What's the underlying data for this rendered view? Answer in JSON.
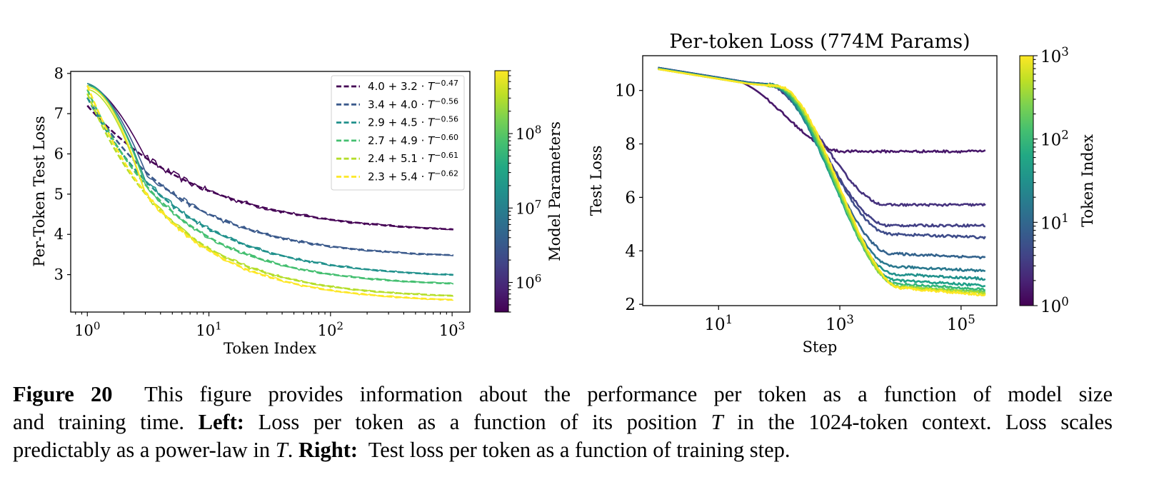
{
  "chart_data": [
    {
      "type": "line",
      "title": "",
      "xlabel": "Token Index",
      "ylabel": "Per-Token Test Loss",
      "xscale": "log",
      "xlim": [
        0.73,
        1400
      ],
      "ylim": [
        2.07,
        8.05
      ],
      "xticks": [
        {
          "value": 1,
          "base": "10",
          "exp": "0"
        },
        {
          "value": 10,
          "base": "10",
          "exp": "1"
        },
        {
          "value": 100,
          "base": "10",
          "exp": "2"
        },
        {
          "value": 1000,
          "base": "10",
          "exp": "3"
        }
      ],
      "yticks": [
        "3",
        "4",
        "5",
        "6",
        "7",
        "8"
      ],
      "legend_position": "top-right",
      "series": [
        {
          "name": "4.0 + 3.2 · T^-0.47",
          "a": 4.0,
          "b": 3.2,
          "c": 0.47,
          "legend_main": "4.0 + 3.2 · ",
          "legend_T": "T",
          "legend_exp": "−0.47",
          "color": "#440154",
          "data_start": 7.75,
          "noise": 0.09
        },
        {
          "name": "3.4 + 4.0 · T^-0.56",
          "a": 3.4,
          "b": 4.0,
          "c": 0.56,
          "legend_main": "3.4 + 4.0 · ",
          "legend_T": "T",
          "legend_exp": "−0.56",
          "color": "#3b5a8c",
          "data_start": 7.75,
          "noise": 0.08
        },
        {
          "name": "2.9 + 4.5 · T^-0.56",
          "a": 2.9,
          "b": 4.5,
          "c": 0.56,
          "legend_main": "2.9 + 4.5 · ",
          "legend_T": "T",
          "legend_exp": "−0.56",
          "color": "#21918c",
          "data_start": 7.75,
          "noise": 0.07
        },
        {
          "name": "2.7 + 4.9 · T^-0.60",
          "a": 2.7,
          "b": 4.9,
          "c": 0.6,
          "legend_main": "2.7 + 4.9 · ",
          "legend_T": "T",
          "legend_exp": "−0.60",
          "color": "#44bf70",
          "data_start": 7.7,
          "noise": 0.06
        },
        {
          "name": "2.4 + 5.1 · T^-0.61",
          "a": 2.4,
          "b": 5.1,
          "c": 0.61,
          "legend_main": "2.4 + 5.1 · ",
          "legend_T": "T",
          "legend_exp": "−0.61",
          "color": "#b5de2b",
          "data_start": 7.6,
          "noise": 0.06
        },
        {
          "name": "2.3 + 5.4 · T^-0.62",
          "a": 2.3,
          "b": 5.4,
          "c": 0.62,
          "legend_main": "2.3 + 5.4 · ",
          "legend_T": "T",
          "legend_exp": "−0.62",
          "color": "#fde725",
          "data_start": 7.65,
          "noise": 0.06
        }
      ],
      "colorbar": {
        "label": "Model Parameters",
        "scale": "log",
        "range": [
          400000,
          700000000
        ],
        "ticks": [
          {
            "value": 1000000,
            "base": "10",
            "exp": "6"
          },
          {
            "value": 10000000,
            "base": "10",
            "exp": "7"
          },
          {
            "value": 100000000,
            "base": "10",
            "exp": "8"
          }
        ],
        "colormap": "viridis"
      }
    },
    {
      "type": "line",
      "title": "Per-token Loss (774M Params)",
      "xlabel": "Step",
      "ylabel": "Test Loss",
      "xscale": "log",
      "xlim": [
        0.56,
        390000
      ],
      "ylim": [
        1.95,
        11.3
      ],
      "xticks": [
        {
          "value": 10,
          "base": "10",
          "exp": "1"
        },
        {
          "value": 1000,
          "base": "10",
          "exp": "3"
        },
        {
          "value": 100000,
          "base": "10",
          "exp": "5"
        }
      ],
      "yticks": [
        "2",
        "4",
        "6",
        "8",
        "10"
      ],
      "x_range": [
        1,
        250000
      ],
      "series": [
        {
          "token_index": 1,
          "color": "#48186a",
          "start": 10.85,
          "final": 7.72
        },
        {
          "token_index": 2,
          "color": "#46327e",
          "start": 10.85,
          "final": 5.72
        },
        {
          "token_index": 3,
          "color": "#424086",
          "start": 10.85,
          "final": 4.95
        },
        {
          "token_index": 4,
          "color": "#3e4c8a",
          "start": 10.85,
          "final": 4.5
        },
        {
          "token_index": 8,
          "color": "#33638d",
          "start": 10.85,
          "final": 3.75
        },
        {
          "token_index": 16,
          "color": "#2a788e",
          "start": 10.82,
          "final": 3.25
        },
        {
          "token_index": 32,
          "color": "#21918c",
          "start": 10.82,
          "final": 2.95
        },
        {
          "token_index": 64,
          "color": "#1fa088",
          "start": 10.82,
          "final": 2.7
        },
        {
          "token_index": 128,
          "color": "#35b779",
          "start": 10.8,
          "final": 2.55
        },
        {
          "token_index": 256,
          "color": "#6ece58",
          "start": 10.8,
          "final": 2.45
        },
        {
          "token_index": 512,
          "color": "#b5de2b",
          "start": 10.8,
          "final": 2.4
        },
        {
          "token_index": 1024,
          "color": "#fde725",
          "start": 10.8,
          "final": 2.35
        }
      ],
      "colorbar": {
        "label": "Token Index",
        "scale": "log",
        "range": [
          1,
          1000
        ],
        "ticks": [
          {
            "value": 1,
            "base": "10",
            "exp": "0"
          },
          {
            "value": 10,
            "base": "10",
            "exp": "1"
          },
          {
            "value": 100,
            "base": "10",
            "exp": "2"
          },
          {
            "value": 1000,
            "base": "10",
            "exp": "3"
          }
        ],
        "colormap": "viridis"
      }
    }
  ],
  "caption": {
    "label": "Figure 20",
    "line1": "This figure provides information about the performance per token as a function of model size",
    "line2_a": "and training time.",
    "line2_left_label": "Left:",
    "line2_b": "Loss per token as a function of its position",
    "line2_T": "T",
    "line2_c": "in the 1024-token context. Loss scales",
    "line3_a": "predictably as a power-law in",
    "line3_T": "T",
    "line3_b": ".",
    "line3_right_label": "Right:",
    "line3_c": "Test loss per token as a function of training step."
  }
}
